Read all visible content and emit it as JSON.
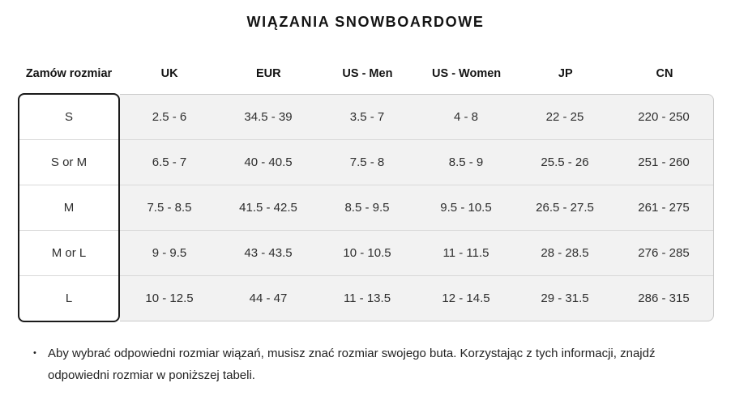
{
  "title": "WIĄZANIA SNOWBOARDOWE",
  "table": {
    "columns": [
      "Zamów rozmiar",
      "UK",
      "EUR",
      "US - Men",
      "US - Women",
      "JP",
      "CN"
    ],
    "rows": [
      {
        "label": "S",
        "values": [
          "2.5 - 6",
          "34.5 - 39",
          "3.5 - 7",
          "4 - 8",
          "22 - 25",
          "220 - 250"
        ]
      },
      {
        "label": "S or M",
        "values": [
          "6.5 - 7",
          "40 - 40.5",
          "7.5 - 8",
          "8.5 - 9",
          "25.5 - 26",
          "251 - 260"
        ]
      },
      {
        "label": "M",
        "values": [
          "7.5 - 8.5",
          "41.5 - 42.5",
          "8.5 - 9.5",
          "9.5 - 10.5",
          "26.5 - 27.5",
          "261 - 275"
        ]
      },
      {
        "label": "M or L",
        "values": [
          "9 - 9.5",
          "43 - 43.5",
          "10 - 10.5",
          "11 - 11.5",
          "28 - 28.5",
          "276 - 285"
        ]
      },
      {
        "label": "L",
        "values": [
          "10 - 12.5",
          "44 - 47",
          "11 - 13.5",
          "12 - 14.5",
          "29 - 31.5",
          "286 - 315"
        ]
      }
    ]
  },
  "notes": {
    "bullet_glyph": "•",
    "items": [
      "Aby wybrać odpowiedni rozmiar wiązań, musisz znać rozmiar swojego buta. Korzystając z tych informacji, znajdź odpowiedni rozmiar w poniższej tabeli."
    ]
  },
  "colors": {
    "page_bg": "#ffffff",
    "panel_bg": "#f2f2f2",
    "label_border": "#1a1a1a",
    "panel_border": "#c9c9c9",
    "row_separator": "#d9d9d9",
    "text": "#1a1a1a"
  }
}
